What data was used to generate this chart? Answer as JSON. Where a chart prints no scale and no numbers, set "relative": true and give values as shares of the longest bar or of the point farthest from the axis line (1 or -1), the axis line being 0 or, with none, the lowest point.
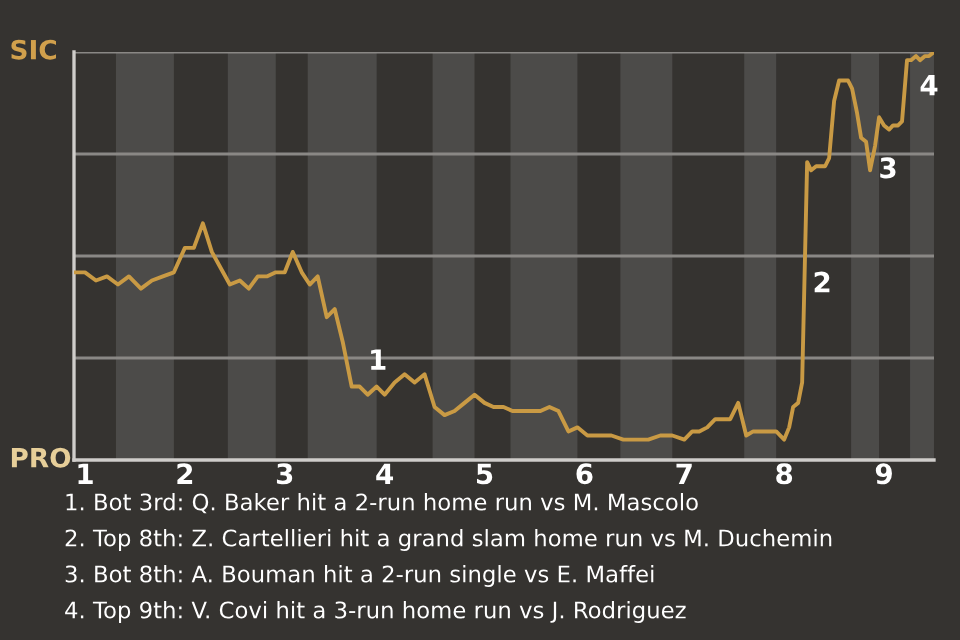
{
  "chart_data": {
    "type": "line",
    "relative": true,
    "grid": "y",
    "marker": "none",
    "line_style": "solid",
    "x": [
      0.89,
      1.0,
      1.11,
      1.22,
      1.33,
      1.44,
      1.56,
      1.67,
      1.78,
      1.89,
      2.0,
      2.09,
      2.18,
      2.27,
      2.36,
      2.45,
      2.55,
      2.64,
      2.73,
      2.82,
      2.91,
      3.0,
      3.08,
      3.17,
      3.25,
      3.33,
      3.42,
      3.5,
      3.58,
      3.67,
      3.75,
      3.83,
      3.92,
      4.0,
      4.1,
      4.2,
      4.3,
      4.4,
      4.5,
      4.6,
      4.7,
      4.8,
      4.9,
      5.0,
      5.09,
      5.19,
      5.28,
      5.37,
      5.47,
      5.56,
      5.65,
      5.74,
      5.84,
      5.93,
      6.03,
      6.15,
      6.27,
      6.39,
      6.52,
      6.64,
      6.76,
      6.88,
      7.0,
      7.08,
      7.15,
      7.23,
      7.31,
      7.38,
      7.46,
      7.54,
      7.62,
      7.69,
      7.77,
      7.85,
      7.92,
      8.0,
      8.05,
      8.09,
      8.14,
      8.18,
      8.23,
      8.27,
      8.32,
      8.36,
      8.41,
      8.45,
      8.5,
      8.55,
      8.59,
      8.64,
      8.68,
      8.73,
      8.77,
      8.82,
      8.86,
      8.91,
      8.95,
      9.0,
      9.05,
      9.09,
      9.14,
      9.18,
      9.23,
      9.27,
      9.32,
      9.36,
      9.41,
      9.45,
      9.5
    ],
    "series": [
      {
        "color": "#c99a44",
        "values": [
          0.46,
          0.46,
          0.44,
          0.45,
          0.43,
          0.45,
          0.42,
          0.44,
          0.45,
          0.46,
          0.52,
          0.52,
          0.58,
          0.51,
          0.47,
          0.43,
          0.44,
          0.42,
          0.45,
          0.45,
          0.46,
          0.46,
          0.51,
          0.46,
          0.43,
          0.45,
          0.35,
          0.37,
          0.29,
          0.18,
          0.18,
          0.16,
          0.18,
          0.16,
          0.19,
          0.21,
          0.19,
          0.21,
          0.13,
          0.11,
          0.12,
          0.14,
          0.16,
          0.14,
          0.13,
          0.13,
          0.12,
          0.12,
          0.12,
          0.12,
          0.13,
          0.12,
          0.07,
          0.08,
          0.06,
          0.06,
          0.06,
          0.05,
          0.05,
          0.05,
          0.06,
          0.06,
          0.05,
          0.07,
          0.07,
          0.08,
          0.1,
          0.1,
          0.1,
          0.14,
          0.06,
          0.07,
          0.07,
          0.07,
          0.07,
          0.05,
          0.08,
          0.13,
          0.14,
          0.19,
          0.73,
          0.71,
          0.72,
          0.72,
          0.72,
          0.74,
          0.88,
          0.93,
          0.93,
          0.93,
          0.91,
          0.85,
          0.79,
          0.78,
          0.71,
          0.77,
          0.84,
          0.82,
          0.81,
          0.82,
          0.82,
          0.83,
          0.98,
          0.98,
          0.99,
          0.98,
          0.99,
          0.99,
          1.0
        ]
      }
    ],
    "xlim": [
      0.89,
      9.5
    ],
    "xticks": [
      1,
      2,
      3,
      4,
      5,
      6,
      7,
      8,
      9
    ],
    "bands": [
      {
        "axis": "x",
        "from": 1.31,
        "to": 1.89,
        "color": "#4c4b49"
      },
      {
        "axis": "x",
        "from": 2.43,
        "to": 2.91,
        "color": "#4c4b49"
      },
      {
        "axis": "x",
        "from": 3.23,
        "to": 3.92,
        "color": "#4c4b49"
      },
      {
        "axis": "x",
        "from": 4.48,
        "to": 4.9,
        "color": "#4c4b49"
      },
      {
        "axis": "x",
        "from": 5.26,
        "to": 5.93,
        "color": "#4c4b49"
      },
      {
        "axis": "x",
        "from": 6.36,
        "to": 6.88,
        "color": "#4c4b49"
      },
      {
        "axis": "x",
        "from": 7.6,
        "to": 7.92,
        "color": "#4c4b49"
      },
      {
        "axis": "x",
        "from": 8.67,
        "to": 8.95,
        "color": "#4c4b49"
      },
      {
        "axis": "x",
        "from": 9.26,
        "to": 9.5,
        "color": "#4c4b49"
      }
    ],
    "annotations": [
      "SIC",
      "PRO",
      {
        "text": "1",
        "x": 3.75,
        "y": 0.18
      },
      {
        "text": "2",
        "x": 8.2,
        "y": 0.43
      },
      {
        "text": "3",
        "x": 8.86,
        "y": 0.71
      },
      {
        "text": "4",
        "x": 9.27,
        "y": 0.98
      },
      "1. Bot 3rd: Q. Baker hit a 2-run home run vs M. Mascolo",
      "2. Top 8th: Z. Cartellieri hit a grand slam home run vs M. Duchemin",
      "3. Bot 8th: A. Bouman hit a 2-run single vs E. Maffei",
      "4. Top 9th: V. Covi hit a 3-run home run vs J. Rodriguez"
    ]
  }
}
